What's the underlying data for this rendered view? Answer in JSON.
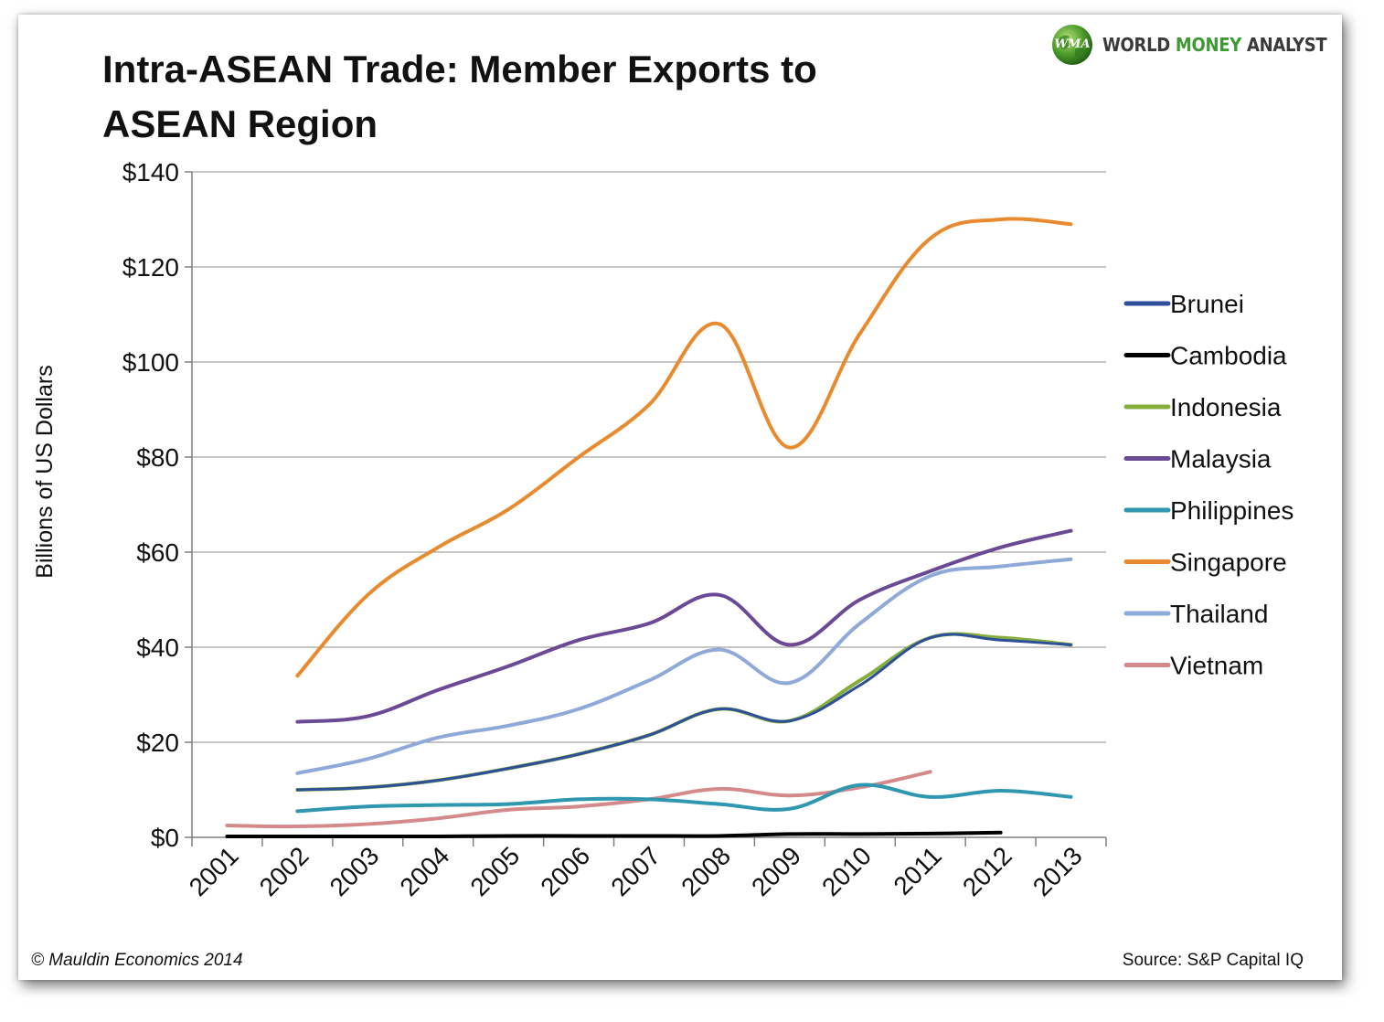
{
  "header": {
    "title_line1": "Intra-ASEAN Trade: Member Exports to",
    "title_line2": "ASEAN Region"
  },
  "logo": {
    "badge_text": "WMA",
    "word1": "WORLD",
    "word2": "MONEY",
    "word3": "ANALYST",
    "icon": "globe-icon"
  },
  "footer": {
    "copyright": "© Mauldin Economics 2014",
    "source": "Source: S&P Capital IQ"
  },
  "colors": {
    "gridline": "#8c8c8c",
    "axis": "#7f7f7f"
  },
  "chart_data": {
    "type": "line",
    "ylabel": "Billions of US Dollars",
    "ylim": [
      0,
      140
    ],
    "yticks": [
      0,
      20,
      40,
      60,
      80,
      100,
      120,
      140
    ],
    "ytick_labels": [
      "$0",
      "$20",
      "$40",
      "$60",
      "$80",
      "$100",
      "$120",
      "$140"
    ],
    "categories": [
      "2001",
      "2002",
      "2003",
      "2004",
      "2005",
      "2006",
      "2007",
      "2008",
      "2009",
      "2010",
      "2011",
      "2012",
      "2013"
    ],
    "grid": true,
    "legend_position": "right",
    "series": [
      {
        "name": "Brunei",
        "color": "#2e4f99",
        "width": 3,
        "values": [
          null,
          10,
          10.5,
          12,
          14.5,
          17.5,
          21.5,
          27,
          24.5,
          32,
          42,
          41.5,
          40.5
        ]
      },
      {
        "name": "Cambodia",
        "color": "#000000",
        "width": 4,
        "values": [
          0.2,
          0.2,
          0.2,
          0.2,
          0.3,
          0.3,
          0.3,
          0.3,
          0.7,
          0.7,
          0.8,
          1.0,
          null
        ]
      },
      {
        "name": "Indonesia",
        "color": "#84ad3c",
        "width": 4,
        "values": [
          null,
          10,
          10.5,
          12,
          14.5,
          17.5,
          21.5,
          27,
          24.5,
          33,
          42,
          42,
          40.5
        ]
      },
      {
        "name": "Malaysia",
        "color": "#6a4a94",
        "width": 4,
        "values": [
          null,
          24.3,
          25.5,
          31,
          36,
          41.5,
          45,
          51,
          40.5,
          50,
          56,
          61,
          64.5
        ]
      },
      {
        "name": "Philippines",
        "color": "#2f97ae",
        "width": 4,
        "values": [
          null,
          5.5,
          6.5,
          6.8,
          7,
          8,
          8,
          7,
          6,
          11,
          8.5,
          9.8,
          8.5
        ]
      },
      {
        "name": "Singapore",
        "color": "#e88a2e",
        "width": 4,
        "values": [
          null,
          34,
          51,
          61,
          69,
          80,
          91,
          108,
          82,
          106,
          126,
          130,
          129
        ]
      },
      {
        "name": "Thailand",
        "color": "#8fa9d8",
        "width": 4,
        "values": [
          null,
          13.5,
          16.5,
          21,
          23.5,
          27,
          33,
          39.5,
          32.5,
          45,
          55,
          57,
          58.5
        ]
      },
      {
        "name": "Vietnam",
        "color": "#d48a8a",
        "width": 4,
        "values": [
          2.5,
          2.3,
          2.8,
          4,
          5.8,
          6.5,
          8,
          10.2,
          8.8,
          10.5,
          13.8,
          null,
          null
        ]
      }
    ]
  }
}
